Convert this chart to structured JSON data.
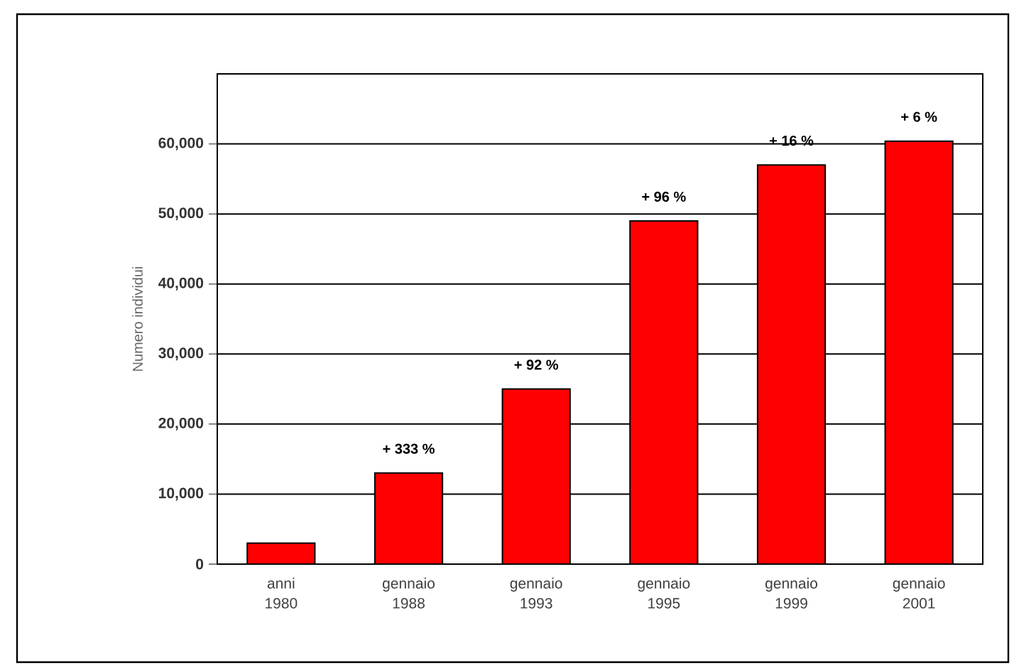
{
  "chart_data": {
    "type": "bar",
    "ylabel": "Numero individui",
    "categories": [
      "anni 1980",
      "gennaio 1988",
      "gennaio 1993",
      "gennaio 1995",
      "gennaio 1999",
      "gennaio 2001"
    ],
    "values": [
      3000,
      13000,
      25000,
      49000,
      57000,
      60400
    ],
    "annotations": [
      {
        "text": "+ 333 %",
        "x": "gennaio 1988",
        "y": 13000
      },
      {
        "text": "+ 92 %",
        "x": "gennaio 1993",
        "y": 25000
      },
      {
        "text": "+ 96 %",
        "x": "gennaio 1995",
        "y": 49000
      },
      {
        "text": "+ 16 %",
        "x": "gennaio 1999",
        "y": 57000
      },
      {
        "text": "+ 6 %",
        "x": "gennaio 2001",
        "y": 60400
      }
    ],
    "color": "#ff0000",
    "ylim": [
      0,
      70000
    ],
    "yticks": [
      {
        "value": 0,
        "label": "0"
      },
      {
        "value": 10000,
        "label": "10,000"
      },
      {
        "value": 20000,
        "label": "20,000"
      },
      {
        "value": 30000,
        "label": "30,000"
      },
      {
        "value": 40000,
        "label": "40,000"
      },
      {
        "value": 50000,
        "label": "50,000"
      },
      {
        "value": 60000,
        "label": "60,000"
      }
    ],
    "grid": "y"
  }
}
